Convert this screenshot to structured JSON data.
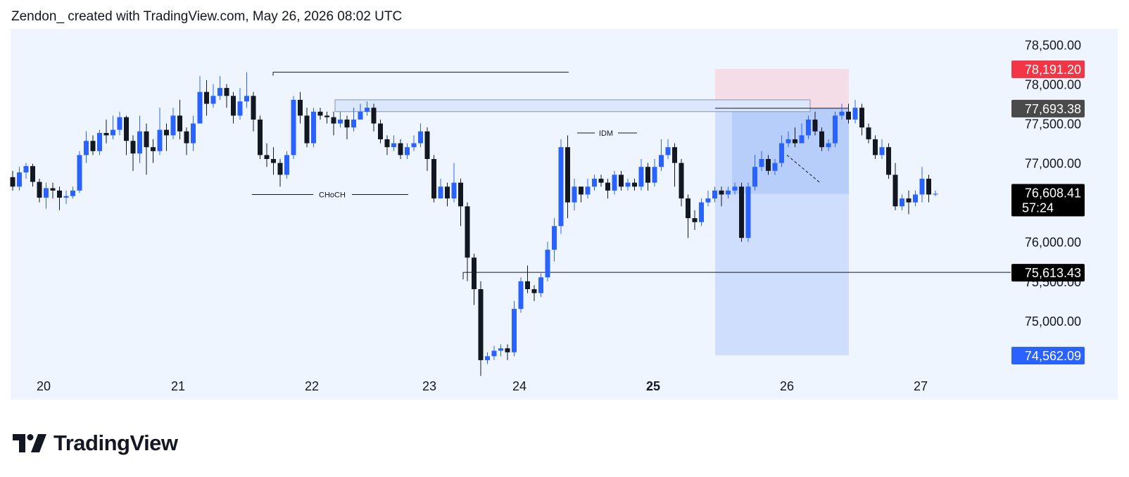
{
  "header": {
    "attribution": "Zendon_ created with TradingView.com, May 26, 2026 08:02 UTC"
  },
  "branding": {
    "logo_icon": "tradingview-logo-icon",
    "logo_text": "TradingView"
  },
  "colors": {
    "background": "#eef5fe",
    "up": "#2962ff",
    "down": "#131722",
    "stop_zone": "#f4dde6",
    "target_zone": "#cfdefc",
    "stop_tag": "#f23645",
    "target_tag": "#2962ff",
    "entry_tag": "#4a4a4a",
    "current_tag": "#000000"
  },
  "chart_data": {
    "type": "candlestick",
    "symbol_interval": "1H",
    "x_labels": [
      "20",
      "21",
      "22",
      "23",
      "24",
      "25",
      "26",
      "27"
    ],
    "x_bold_label": "25",
    "y_ticks": [
      "78,500.00",
      "78,000.00",
      "77,500.00",
      "77,000.00",
      "76,000.00",
      "75,500.00",
      "75,000.00"
    ],
    "ylim": [
      74000,
      78700
    ],
    "price_tags": [
      {
        "label": "78,191.20",
        "price": 78191.2,
        "role": "stop"
      },
      {
        "label": "77,693.38",
        "price": 77693.38,
        "role": "entry"
      },
      {
        "label": "76,608.41",
        "sub": "57:24",
        "price": 76608.41,
        "role": "current"
      },
      {
        "label": "75,613.43",
        "price": 75613.43,
        "role": "level"
      },
      {
        "label": "74,562.09",
        "price": 74562.09,
        "role": "target"
      }
    ],
    "annotations": [
      {
        "text": "CHoCH",
        "price": 76600
      },
      {
        "text": "IDM",
        "price": 77380
      }
    ],
    "candles": [
      [
        76820,
        76700,
        76900,
        76650
      ],
      [
        76700,
        76880,
        76950,
        76650
      ],
      [
        76880,
        76960,
        77000,
        76800
      ],
      [
        76960,
        76760,
        76990,
        76700
      ],
      [
        76760,
        76560,
        76800,
        76500
      ],
      [
        76560,
        76680,
        76750,
        76420
      ],
      [
        76680,
        76650,
        76750,
        76550
      ],
      [
        76650,
        76560,
        76700,
        76400
      ],
      [
        76560,
        76580,
        76650,
        76480
      ],
      [
        76580,
        76650,
        76700,
        76550
      ],
      [
        76650,
        77100,
        77150,
        76620
      ],
      [
        77100,
        77280,
        77400,
        77000
      ],
      [
        77280,
        77150,
        77350,
        77100
      ],
      [
        77150,
        77380,
        77420,
        77100
      ],
      [
        77380,
        77350,
        77550,
        77250
      ],
      [
        77350,
        77420,
        77600,
        77300
      ],
      [
        77420,
        77580,
        77650,
        77350
      ],
      [
        77580,
        77280,
        77600,
        77100
      ],
      [
        77280,
        77120,
        77350,
        76900
      ],
      [
        77120,
        77400,
        77600,
        77000
      ],
      [
        77400,
        77200,
        77500,
        76850
      ],
      [
        77200,
        77150,
        77300,
        77000
      ],
      [
        77150,
        77420,
        77700,
        77100
      ],
      [
        77420,
        77350,
        77500,
        77150
      ],
      [
        77350,
        77600,
        77700,
        77300
      ],
      [
        77600,
        77400,
        77800,
        77300
      ],
      [
        77400,
        77250,
        77450,
        77100
      ],
      [
        77250,
        77500,
        77600,
        77150
      ],
      [
        77500,
        77900,
        78100,
        77700
      ],
      [
        77900,
        77750,
        78050,
        77600
      ],
      [
        77750,
        77850,
        78000,
        77700
      ],
      [
        77850,
        77950,
        78100,
        77800
      ],
      [
        77950,
        77850,
        78000,
        77700
      ],
      [
        77850,
        77600,
        77900,
        77500
      ],
      [
        77600,
        77780,
        77950,
        77550
      ],
      [
        77780,
        77850,
        78150,
        77700
      ],
      [
        77850,
        77550,
        77900,
        77400
      ],
      [
        77550,
        77100,
        77600,
        77050
      ],
      [
        77100,
        77050,
        77250,
        76950
      ],
      [
        77050,
        77000,
        77200,
        76850
      ],
      [
        77000,
        76850,
        77050,
        76700
      ],
      [
        76850,
        77100,
        77150,
        76800
      ],
      [
        77100,
        77800,
        77850,
        77050
      ],
      [
        77800,
        77600,
        77900,
        77500
      ],
      [
        77600,
        77250,
        77700,
        77200
      ],
      [
        77250,
        77650,
        77700,
        77200
      ],
      [
        77650,
        77600,
        77700,
        77550
      ],
      [
        77600,
        77580,
        77650,
        77500
      ],
      [
        77580,
        77500,
        77650,
        77350
      ],
      [
        77500,
        77550,
        77650,
        77450
      ],
      [
        77550,
        77450,
        77600,
        77300
      ],
      [
        77450,
        77550,
        77700,
        77400
      ],
      [
        77550,
        77650,
        77750,
        77600
      ],
      [
        77650,
        77700,
        77780,
        77600
      ],
      [
        77700,
        77500,
        77750,
        77400
      ],
      [
        77500,
        77300,
        77550,
        77250
      ],
      [
        77300,
        77200,
        77350,
        77100
      ],
      [
        77200,
        77250,
        77350,
        77150
      ],
      [
        77250,
        77100,
        77300,
        77050
      ],
      [
        77100,
        77200,
        77250,
        77050
      ],
      [
        77200,
        77250,
        77350,
        77150
      ],
      [
        77250,
        77400,
        77500,
        77200
      ],
      [
        77400,
        77050,
        77450,
        76900
      ],
      [
        77050,
        76550,
        77100,
        76500
      ],
      [
        76550,
        76700,
        76800,
        76600
      ],
      [
        76700,
        76550,
        76750,
        76450
      ],
      [
        76550,
        76750,
        77000,
        76500
      ],
      [
        76750,
        76450,
        76800,
        76200
      ],
      [
        76450,
        75800,
        76500,
        75500
      ],
      [
        75800,
        75400,
        75850,
        75200
      ],
      [
        75400,
        74500,
        75500,
        74300
      ],
      [
        74500,
        74550,
        74600,
        74450
      ],
      [
        74550,
        74620,
        74680,
        74500
      ],
      [
        74620,
        74650,
        74700,
        74550
      ],
      [
        74650,
        74600,
        74700,
        74500
      ],
      [
        74600,
        75150,
        75250,
        74550
      ],
      [
        75150,
        75500,
        75550,
        75100
      ],
      [
        75500,
        75400,
        75700,
        75350
      ],
      [
        75400,
        75350,
        75450,
        75250
      ],
      [
        75350,
        75550,
        75600,
        75300
      ],
      [
        75550,
        75900,
        76000,
        75500
      ],
      [
        75900,
        76200,
        76300,
        75750
      ],
      [
        76200,
        77200,
        77300,
        76100
      ],
      [
        77200,
        76500,
        77350,
        76300
      ],
      [
        76500,
        76700,
        76800,
        76400
      ],
      [
        76700,
        76600,
        76700,
        76500
      ],
      [
        76600,
        76700,
        76800,
        76550
      ],
      [
        76700,
        76800,
        76850,
        76650
      ],
      [
        76800,
        76750,
        76850,
        76700
      ],
      [
        76750,
        76650,
        76800,
        76550
      ],
      [
        76650,
        76850,
        76900,
        76600
      ],
      [
        76850,
        76700,
        76900,
        76650
      ],
      [
        76700,
        76750,
        76800,
        76650
      ],
      [
        76750,
        76700,
        76800,
        76650
      ],
      [
        76700,
        76950,
        77050,
        76650
      ],
      [
        76950,
        76750,
        77000,
        76650
      ],
      [
        76750,
        76950,
        77050,
        76700
      ],
      [
        76950,
        77100,
        77300,
        76900
      ],
      [
        77100,
        77200,
        77300,
        77050
      ],
      [
        77200,
        77000,
        77250,
        76700
      ],
      [
        77000,
        76550,
        77050,
        76450
      ],
      [
        76550,
        76300,
        76600,
        76050
      ],
      [
        76300,
        76250,
        76400,
        76150
      ],
      [
        76250,
        76500,
        76550,
        76200
      ],
      [
        76500,
        76550,
        76650,
        76450
      ],
      [
        76550,
        76650,
        76700,
        76500
      ],
      [
        76650,
        76600,
        76700,
        76450
      ],
      [
        76600,
        76650,
        76700,
        76550
      ],
      [
        76650,
        76700,
        76750,
        76600
      ],
      [
        76700,
        76050,
        76750,
        76000
      ],
      [
        76050,
        76700,
        76750,
        76000
      ],
      [
        76700,
        76950,
        77100,
        76650
      ],
      [
        76950,
        77050,
        77150,
        76900
      ],
      [
        77050,
        76900,
        77100,
        76850
      ],
      [
        76900,
        77000,
        77050,
        76850
      ],
      [
        77000,
        77250,
        77350,
        76950
      ],
      [
        77250,
        77300,
        77400,
        77200
      ],
      [
        77300,
        77250,
        77450,
        77200
      ],
      [
        77250,
        77350,
        77500,
        77250
      ],
      [
        77350,
        77550,
        77600,
        77300
      ],
      [
        77550,
        77400,
        77650,
        77350
      ],
      [
        77400,
        77200,
        77450,
        77150
      ],
      [
        77200,
        77250,
        77300,
        77150
      ],
      [
        77250,
        77600,
        77650,
        77200
      ],
      [
        77600,
        77650,
        77750,
        77550
      ],
      [
        77650,
        77550,
        77750,
        77500
      ],
      [
        77550,
        77700,
        77800,
        77500
      ],
      [
        77700,
        77450,
        77750,
        77350
      ],
      [
        77450,
        77300,
        77500,
        77250
      ],
      [
        77300,
        77100,
        77350,
        77050
      ],
      [
        77100,
        77200,
        77300,
        77050
      ],
      [
        77200,
        76850,
        77250,
        76800
      ],
      [
        76850,
        76450,
        77000,
        76400
      ],
      [
        76450,
        76550,
        76600,
        76400
      ],
      [
        76550,
        76500,
        76650,
        76350
      ],
      [
        76500,
        76600,
        76650,
        76450
      ],
      [
        76600,
        76800,
        76950,
        76500
      ],
      [
        76800,
        76600,
        76850,
        76500
      ],
      [
        76600,
        76610,
        76650,
        76580
      ]
    ]
  }
}
